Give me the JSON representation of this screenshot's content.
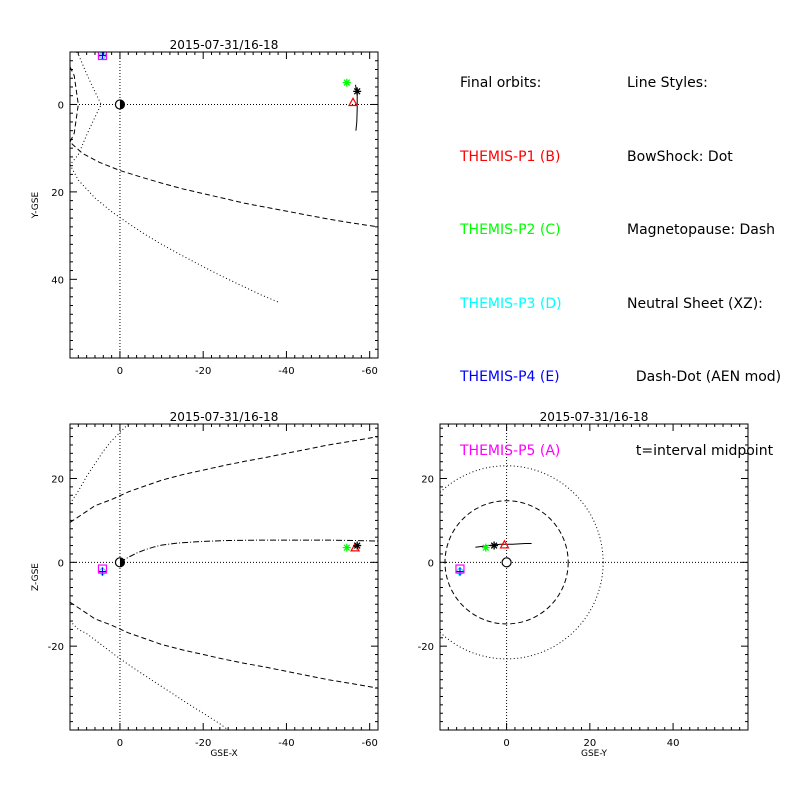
{
  "legend": {
    "orbits_title": "Final orbits:",
    "probes": [
      {
        "label": "THEMIS-P1 (B)",
        "color": "#ff0000"
      },
      {
        "label": "THEMIS-P2 (C)",
        "color": "#00ff00"
      },
      {
        "label": "THEMIS-P3 (D)",
        "color": "#00ffff"
      },
      {
        "label": "THEMIS-P4 (E)",
        "color": "#0000ff"
      },
      {
        "label": "THEMIS-P5 (A)",
        "color": "#ff00ff"
      }
    ],
    "styles_title": "Line Styles:",
    "styles": [
      "BowShock: Dot",
      "Magnetopause: Dash",
      "Neutral Sheet (XZ):",
      "  Dash-Dot (AEN mod)",
      "  t=interval midpoint"
    ]
  },
  "chart_data": [
    {
      "type": "scatter",
      "title": "2015-07-31/16-18",
      "xlabel": "",
      "ylabel": "Y-GSE",
      "xlim": [
        12,
        -62
      ],
      "ylim": [
        58,
        -12
      ],
      "xticks": [
        0,
        -20,
        -40,
        -60
      ],
      "yticks": [
        0,
        20,
        40
      ],
      "grid": false,
      "guides": {
        "x": 0,
        "y": 0
      },
      "bowshock": [
        [
          12,
          -13.8
        ],
        [
          10,
          -11.5
        ],
        [
          8,
          -7.0
        ],
        [
          6,
          -2.9
        ],
        [
          4.5,
          0
        ],
        [
          6,
          2.9
        ],
        [
          8,
          7.0
        ],
        [
          10,
          11.5
        ],
        [
          12,
          13.8
        ],
        [
          10,
          17.3
        ],
        [
          6,
          21.4
        ],
        [
          2,
          24.5
        ],
        [
          -2,
          27.2
        ],
        [
          -6,
          29.7
        ],
        [
          -10,
          32.0
        ],
        [
          -14,
          34.1
        ],
        [
          -18,
          36.1
        ],
        [
          -22,
          38.1
        ],
        [
          -26,
          40.0
        ],
        [
          -30,
          41.8
        ],
        [
          -34,
          43.6
        ],
        [
          -38,
          45.2
        ]
      ],
      "magnetopause": [
        [
          12,
          -8.6
        ],
        [
          11,
          -6.6
        ],
        [
          10,
          0
        ],
        [
          11,
          6.6
        ],
        [
          12,
          8.6
        ],
        [
          9,
          11.2
        ],
        [
          5,
          13.2
        ],
        [
          0,
          15.1
        ],
        [
          -5,
          16.6
        ],
        [
          -10,
          18.0
        ],
        [
          -15,
          19.3
        ],
        [
          -20,
          20.4
        ],
        [
          -25,
          21.5
        ],
        [
          -30,
          22.6
        ],
        [
          -35,
          23.5
        ],
        [
          -40,
          24.4
        ],
        [
          -45,
          25.3
        ],
        [
          -50,
          26.2
        ],
        [
          -55,
          27.0
        ],
        [
          -62,
          28.0
        ]
      ],
      "earth": [
        0,
        0
      ],
      "probes": [
        {
          "name": "THEMIS-P1 (B)",
          "marker": "triangle",
          "color": "#ff0000",
          "x": -56.0,
          "y": -0.5,
          "track": [
            [
              -56.6,
              -4.5
            ],
            [
              -57.0,
              -2.0
            ],
            [
              -57.0,
              1.0
            ],
            [
              -56.9,
              4.0
            ],
            [
              -56.7,
              6.0
            ]
          ]
        },
        {
          "name": "THEMIS-P2 (C)",
          "marker": "asterisk",
          "color": "#00ff00",
          "x": -54.5,
          "y": -5.0,
          "track": []
        },
        {
          "name": "THEMIS-P3 (D)",
          "marker": "diamond",
          "color": "#00ffff",
          "x": 4.2,
          "y": -11.2,
          "track": []
        },
        {
          "name": "THEMIS-P4 (E)",
          "marker": "plus",
          "color": "#0000ff",
          "x": 4.2,
          "y": -11.2,
          "track": []
        },
        {
          "name": "THEMIS-P5 (A)",
          "marker": "square",
          "color": "#ff00ff",
          "x": 4.2,
          "y": -11.2,
          "track": []
        },
        {
          "name": "end",
          "marker": "asterisk",
          "color": "#000000",
          "x": -57.0,
          "y": -3.0,
          "track": []
        }
      ]
    },
    {
      "type": "scatter",
      "title": "2015-07-31/16-18",
      "xlabel": "GSE-X",
      "ylabel": "Z-GSE",
      "xlim": [
        12,
        -62
      ],
      "ylim": [
        -40,
        33
      ],
      "xticks": [
        0,
        -20,
        -40,
        -60
      ],
      "yticks": [
        20,
        0,
        -20
      ],
      "grid": false,
      "guides": {
        "x": 0,
        "y": 0
      },
      "bowshock": [
        [
          12,
          -14.0
        ],
        [
          10,
          -16.0
        ],
        [
          8,
          -17.0
        ],
        [
          6,
          -18.5
        ],
        [
          4,
          -20.0
        ],
        [
          2,
          -21.5
        ],
        [
          0,
          -23.0
        ],
        [
          -4,
          -25.7
        ],
        [
          -8,
          -28.3
        ],
        [
          -12,
          -30.9
        ],
        [
          -16,
          -33.5
        ],
        [
          -20,
          -36.0
        ],
        [
          -24,
          -38.5
        ],
        [
          -26,
          -40.0
        ]
      ],
      "bowshock_upper": [
        [
          12,
          14.0
        ],
        [
          10,
          17.0
        ],
        [
          8,
          20.5
        ],
        [
          6,
          23.5
        ],
        [
          4,
          26.5
        ],
        [
          2,
          29.0
        ],
        [
          0,
          31.0
        ],
        [
          -2,
          33.0
        ]
      ],
      "magnetopause": [
        [
          12,
          9.5
        ],
        [
          9,
          11.5
        ],
        [
          6,
          13.5
        ],
        [
          2,
          15.0
        ],
        [
          -2,
          16.8
        ],
        [
          -6,
          18.2
        ],
        [
          -10,
          19.6
        ],
        [
          -15,
          20.9
        ],
        [
          -20,
          22.0
        ],
        [
          -25,
          23.1
        ],
        [
          -30,
          24.1
        ],
        [
          -35,
          25.0
        ],
        [
          -40,
          26.0
        ],
        [
          -45,
          27.0
        ],
        [
          -50,
          28.0
        ],
        [
          -55,
          28.8
        ],
        [
          -62,
          30.0
        ]
      ],
      "magnetopause_lower": [
        [
          12,
          -9.5
        ],
        [
          9,
          -11.5
        ],
        [
          6,
          -13.5
        ],
        [
          2,
          -15.0
        ],
        [
          -2,
          -16.8
        ],
        [
          -6,
          -18.2
        ],
        [
          -10,
          -19.6
        ],
        [
          -15,
          -20.9
        ],
        [
          -20,
          -22.0
        ],
        [
          -25,
          -23.1
        ],
        [
          -30,
          -24.1
        ],
        [
          -35,
          -25.0
        ],
        [
          -40,
          -26.0
        ],
        [
          -45,
          -27.0
        ],
        [
          -50,
          -28.0
        ],
        [
          -55,
          -28.8
        ],
        [
          -62,
          -30.0
        ]
      ],
      "neutral_sheet": [
        [
          0,
          0
        ],
        [
          -2,
          1.2
        ],
        [
          -4,
          2.2
        ],
        [
          -6,
          3.0
        ],
        [
          -8,
          3.6
        ],
        [
          -10,
          4.1
        ],
        [
          -14,
          4.6
        ],
        [
          -20,
          5.0
        ],
        [
          -26,
          5.2
        ],
        [
          -34,
          5.3
        ],
        [
          -42,
          5.3
        ],
        [
          -50,
          5.3
        ],
        [
          -56,
          5.2
        ],
        [
          -62,
          5.1
        ]
      ],
      "earth": [
        0,
        0
      ],
      "probes": [
        {
          "name": "THEMIS-P1 (B)",
          "marker": "triangle",
          "color": "#ff0000",
          "x": -56.5,
          "y": 3.5,
          "track": [
            [
              -56.0,
              3.7
            ],
            [
              -56.8,
              3.9
            ],
            [
              -57.5,
              4.1
            ]
          ]
        },
        {
          "name": "THEMIS-P2 (C)",
          "marker": "asterisk",
          "color": "#00ff00",
          "x": -54.5,
          "y": 3.5,
          "track": []
        },
        {
          "name": "THEMIS-P3 (D)",
          "marker": "diamond",
          "color": "#00ffff",
          "x": 4.2,
          "y": -2.2,
          "track": []
        },
        {
          "name": "THEMIS-P4 (E)",
          "marker": "plus",
          "color": "#0000ff",
          "x": 4.2,
          "y": -2.2,
          "track": []
        },
        {
          "name": "THEMIS-P5 (A)",
          "marker": "square",
          "color": "#ff00ff",
          "x": 4.2,
          "y": -1.6,
          "track": []
        },
        {
          "name": "end",
          "marker": "asterisk",
          "color": "#000000",
          "x": -57.0,
          "y": 4.0,
          "track": []
        }
      ]
    },
    {
      "type": "scatter",
      "title": "2015-07-31/16-18",
      "xlabel": "GSE-Y",
      "ylabel": "",
      "xlim": [
        -16,
        58
      ],
      "ylim": [
        -40,
        33
      ],
      "xticks": [
        0,
        20,
        40
      ],
      "yticks": [
        20,
        0,
        -20
      ],
      "grid": false,
      "guides": {
        "x": 0,
        "y": 0
      },
      "circles": [
        {
          "name": "bowshock",
          "center": [
            0,
            0
          ],
          "radius": 23.2
        },
        {
          "name": "magnetopause",
          "center": [
            0,
            0
          ],
          "radius": 14.8
        }
      ],
      "earth": [
        0,
        0
      ],
      "probes": [
        {
          "name": "track",
          "marker": "none",
          "color": "#000000",
          "x": 0,
          "y": 0,
          "track": [
            [
              -7.5,
              3.6
            ],
            [
              -4.5,
              4.0
            ],
            [
              -1.5,
              4.3
            ],
            [
              1.5,
              4.3
            ],
            [
              4.5,
              4.5
            ],
            [
              6.0,
              4.5
            ]
          ]
        },
        {
          "name": "THEMIS-P1 (B)",
          "marker": "triangle",
          "color": "#ff0000",
          "x": -0.5,
          "y": 4.2,
          "track": []
        },
        {
          "name": "THEMIS-P2 (C)",
          "marker": "asterisk",
          "color": "#00ff00",
          "x": -5.0,
          "y": 3.5,
          "track": []
        },
        {
          "name": "THEMIS-P3 (D)",
          "marker": "diamond",
          "color": "#00ffff",
          "x": -11.2,
          "y": -2.2,
          "track": []
        },
        {
          "name": "THEMIS-P4 (E)",
          "marker": "plus",
          "color": "#0000ff",
          "x": -11.2,
          "y": -2.2,
          "track": []
        },
        {
          "name": "THEMIS-P5 (A)",
          "marker": "square",
          "color": "#ff00ff",
          "x": -11.2,
          "y": -1.6,
          "track": []
        },
        {
          "name": "end",
          "marker": "asterisk",
          "color": "#000000",
          "x": -3.0,
          "y": 4.0,
          "track": []
        }
      ]
    }
  ]
}
